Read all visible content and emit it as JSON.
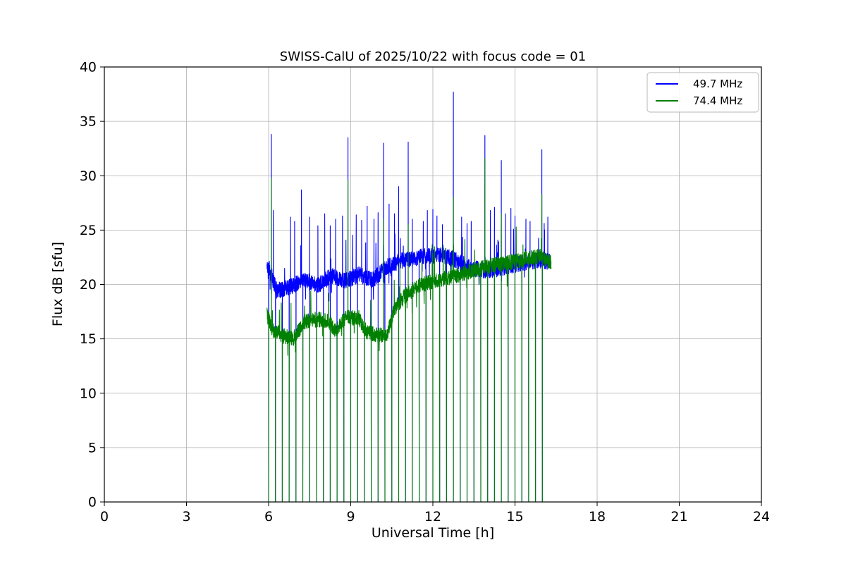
{
  "chart_data": {
    "type": "line",
    "title": "SWISS-CalU of 2025/10/22 with focus code = 01",
    "xlabel": "Universal Time [h]",
    "ylabel": "Flux dB [sfu]",
    "xlim": [
      0,
      24
    ],
    "ylim": [
      0,
      40
    ],
    "xticks": [
      0,
      3,
      6,
      9,
      12,
      15,
      18,
      21,
      24
    ],
    "yticks": [
      0,
      5,
      10,
      15,
      20,
      25,
      30,
      35,
      40
    ],
    "grid": true,
    "grid_color": "#b0b0b0",
    "legend_position": "upper right",
    "x_range_of_data": [
      5.94,
      16.32
    ],
    "dropouts": {
      "start": 6.0,
      "interval": 0.25,
      "count": 41,
      "min_value": 0
    },
    "series": [
      {
        "name": "49.7 MHz",
        "color": "#0000ff",
        "noise": 0.75,
        "baseline": [
          [
            5.94,
            22.0
          ],
          [
            6.3,
            19.4
          ],
          [
            6.8,
            19.8
          ],
          [
            7.3,
            20.4
          ],
          [
            7.8,
            19.9
          ],
          [
            8.3,
            20.8
          ],
          [
            8.8,
            20.3
          ],
          [
            9.3,
            20.9
          ],
          [
            9.8,
            20.4
          ],
          [
            10.3,
            21.6
          ],
          [
            10.8,
            22.2
          ],
          [
            11.3,
            22.4
          ],
          [
            11.8,
            22.6
          ],
          [
            12.3,
            22.8
          ],
          [
            12.8,
            22.3
          ],
          [
            13.3,
            21.6
          ],
          [
            13.8,
            21.3
          ],
          [
            14.3,
            21.4
          ],
          [
            14.8,
            21.7
          ],
          [
            15.3,
            22.0
          ],
          [
            15.8,
            22.2
          ],
          [
            16.32,
            22.1
          ]
        ],
        "spikes": [
          [
            6.1,
            33.8
          ],
          [
            6.17,
            26.8
          ],
          [
            6.8,
            26.2
          ],
          [
            6.95,
            25.8
          ],
          [
            7.2,
            28.7
          ],
          [
            7.5,
            26.2
          ],
          [
            7.8,
            25.4
          ],
          [
            8.05,
            26.5
          ],
          [
            8.25,
            25.4
          ],
          [
            8.45,
            26.0
          ],
          [
            8.7,
            26.3
          ],
          [
            8.9,
            33.5
          ],
          [
            9.2,
            26.4
          ],
          [
            9.4,
            25.9
          ],
          [
            9.6,
            27.2
          ],
          [
            9.85,
            26.0
          ],
          [
            10.0,
            26.6
          ],
          [
            10.2,
            33.0
          ],
          [
            10.4,
            27.4
          ],
          [
            10.6,
            26.5
          ],
          [
            10.75,
            29.0
          ],
          [
            11.1,
            33.1
          ],
          [
            11.25,
            26.0
          ],
          [
            11.65,
            25.8
          ],
          [
            11.8,
            26.8
          ],
          [
            12.0,
            26.9
          ],
          [
            12.15,
            26.3
          ],
          [
            12.35,
            25.5
          ],
          [
            12.75,
            37.7
          ],
          [
            13.05,
            26.2
          ],
          [
            13.25,
            25.6
          ],
          [
            13.4,
            25.8
          ],
          [
            13.9,
            33.7
          ],
          [
            14.1,
            26.8
          ],
          [
            14.25,
            27.1
          ],
          [
            14.5,
            31.4
          ],
          [
            14.65,
            26.5
          ],
          [
            14.85,
            27.0
          ],
          [
            15.0,
            26.3
          ],
          [
            15.4,
            26.0
          ],
          [
            15.55,
            25.8
          ],
          [
            15.98,
            32.4
          ],
          [
            16.2,
            26.2
          ]
        ]
      },
      {
        "name": "74.4 MHz",
        "color": "#008000",
        "noise": 0.7,
        "baseline": [
          [
            5.94,
            17.2
          ],
          [
            6.15,
            15.8
          ],
          [
            6.5,
            15.3
          ],
          [
            6.9,
            15.0
          ],
          [
            7.3,
            16.6
          ],
          [
            7.8,
            16.8
          ],
          [
            8.2,
            16.6
          ],
          [
            8.45,
            15.7
          ],
          [
            8.8,
            17.0
          ],
          [
            9.3,
            16.9
          ],
          [
            9.6,
            15.6
          ],
          [
            10.0,
            15.4
          ],
          [
            10.3,
            15.3
          ],
          [
            10.6,
            17.8
          ],
          [
            11.0,
            19.0
          ],
          [
            11.5,
            19.9
          ],
          [
            12.0,
            20.3
          ],
          [
            12.5,
            20.6
          ],
          [
            13.0,
            20.9
          ],
          [
            13.5,
            21.3
          ],
          [
            14.0,
            21.7
          ],
          [
            14.5,
            21.9
          ],
          [
            15.0,
            22.1
          ],
          [
            15.5,
            22.4
          ],
          [
            15.9,
            22.6
          ],
          [
            16.32,
            22.0
          ]
        ],
        "spikes": [
          [
            6.1,
            29.8
          ],
          [
            8.9,
            29.6
          ],
          [
            10.2,
            26.0
          ],
          [
            11.1,
            25.5
          ],
          [
            12.75,
            28.0
          ],
          [
            13.9,
            31.6
          ],
          [
            14.5,
            26.5
          ],
          [
            15.98,
            28.3
          ]
        ]
      }
    ]
  }
}
